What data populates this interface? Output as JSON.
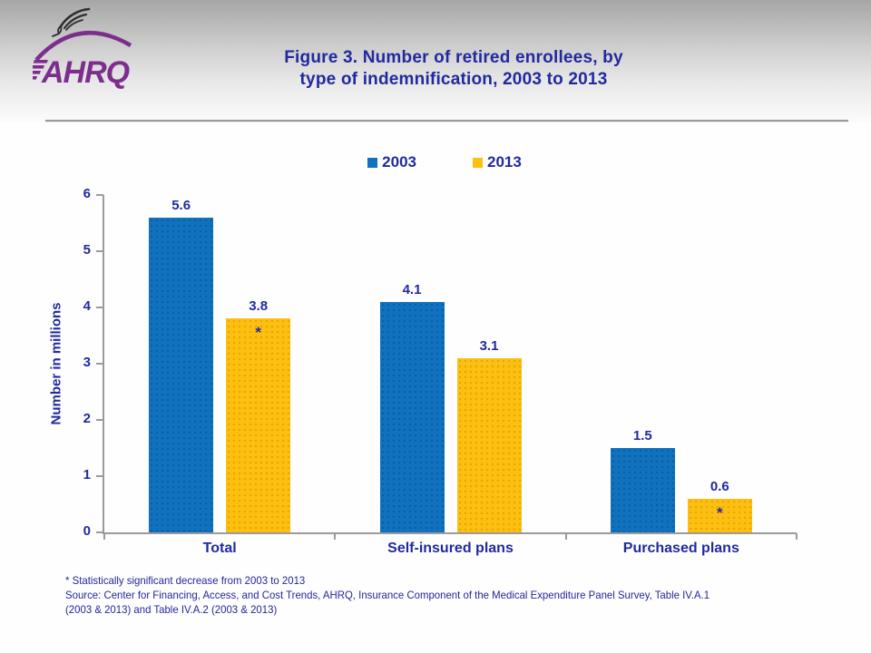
{
  "header": {
    "logo": {
      "org_abbr": "AHRQ",
      "eagle_icon": "hhs-eagle-icon",
      "logo_color": "#7D2E8D",
      "eagle_color": "#2f2f2f"
    },
    "title_line1": "Figure 3. Number of retired enrollees, by",
    "title_line2": "type of indemnification, 2003 to 2013"
  },
  "chart_data": {
    "type": "bar",
    "title": "Figure 3. Number of retired enrollees, by type of indemnification, 2003 to 2013",
    "categories": [
      "Total",
      "Self-insured plans",
      "Purchased plans"
    ],
    "series": [
      {
        "name": "2003",
        "color": "#1072BE",
        "values": [
          5.6,
          4.1,
          1.5
        ],
        "annotations": [
          "",
          "",
          ""
        ]
      },
      {
        "name": "2013",
        "color": "#FDC010",
        "values": [
          3.8,
          3.1,
          0.6
        ],
        "annotations": [
          "*",
          "",
          "*"
        ]
      }
    ],
    "xlabel": "",
    "ylabel": "Number in millions",
    "ylim": [
      0,
      6
    ],
    "yticks": [
      0,
      1,
      2,
      3,
      4,
      5,
      6
    ],
    "grid": false,
    "legend_position": "top-center"
  },
  "footnotes": [
    "* Statistically significant decrease from 2003 to 2013",
    "Source: Center for Financing, Access, and Cost Trends, AHRQ, Insurance Component of the Medical Expenditure Panel Survey,  Table IV.A.1",
    "(2003 & 2013) and Table IV.A.2  (2003 & 2013)"
  ],
  "colors": {
    "title_text": "#202A9E",
    "axis": "#9B9B9B",
    "bar_2003": "#1072BE",
    "bar_2013": "#FDC010",
    "logo_purple": "#7D2E8D"
  }
}
